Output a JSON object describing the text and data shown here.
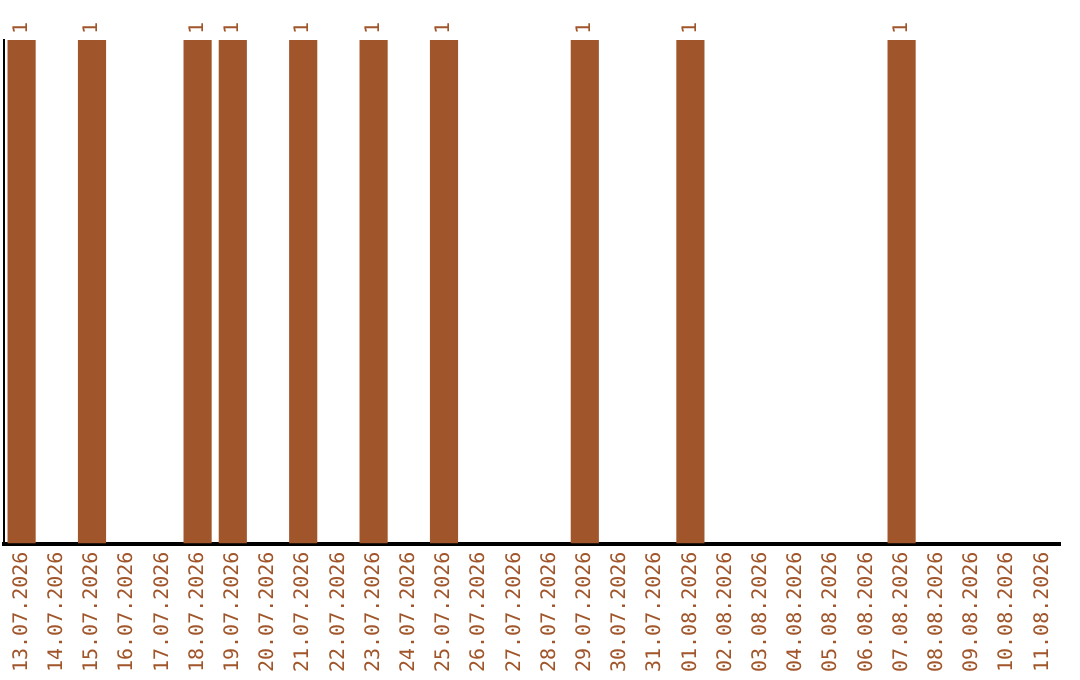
{
  "chart_data": {
    "type": "bar",
    "categories": [
      "13.07.2026",
      "14.07.2026",
      "15.07.2026",
      "16.07.2026",
      "17.07.2026",
      "18.07.2026",
      "19.07.2026",
      "20.07.2026",
      "21.07.2026",
      "22.07.2026",
      "23.07.2026",
      "24.07.2026",
      "25.07.2026",
      "26.07.2026",
      "27.07.2026",
      "28.07.2026",
      "29.07.2026",
      "30.07.2026",
      "31.07.2026",
      "01.08.2026",
      "02.08.2026",
      "03.08.2026",
      "04.08.2026",
      "05.08.2026",
      "06.08.2026",
      "07.08.2026",
      "08.08.2026",
      "09.08.2026",
      "10.08.2026",
      "11.08.2026"
    ],
    "values": [
      1,
      0,
      1,
      0,
      0,
      1,
      1,
      0,
      1,
      0,
      1,
      0,
      1,
      0,
      0,
      0,
      1,
      0,
      0,
      1,
      0,
      0,
      0,
      0,
      0,
      1,
      0,
      0,
      0,
      0
    ],
    "value_labels": [
      "1",
      null,
      "1",
      null,
      null,
      "1",
      "1",
      null,
      "1",
      null,
      "1",
      null,
      "1",
      null,
      null,
      null,
      "1",
      null,
      null,
      "1",
      null,
      null,
      null,
      null,
      null,
      "1",
      null,
      null,
      null,
      null
    ],
    "color": "#a0562a",
    "grid": false,
    "legend": false
  }
}
